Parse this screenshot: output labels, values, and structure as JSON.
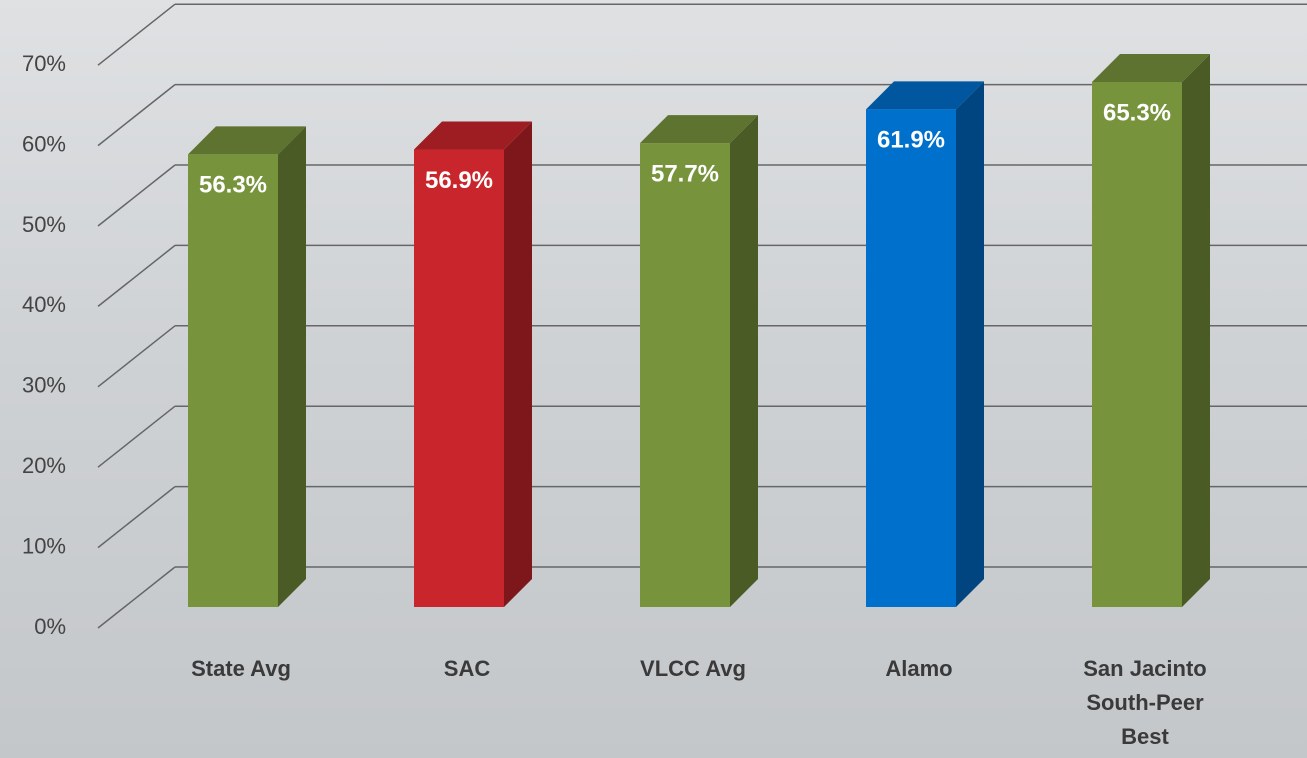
{
  "chart_data": {
    "type": "bar3d",
    "categories": [
      "State Avg",
      "SAC",
      "VLCC Avg",
      "Alamo",
      "San Jacinto South-Peer Best"
    ],
    "values": [
      56.3,
      56.9,
      57.7,
      61.9,
      65.3
    ],
    "value_labels": [
      "56.3%",
      "56.9%",
      "57.7%",
      "61.9%",
      "65.3%"
    ],
    "colors": [
      "#77933c",
      "#c9252c",
      "#77933c",
      "#0070cd",
      "#77933c"
    ],
    "ylim": [
      0,
      70
    ],
    "yticks": [
      {
        "value": 0,
        "label": "0%"
      },
      {
        "value": 10,
        "label": "10%"
      },
      {
        "value": 20,
        "label": "20%"
      },
      {
        "value": 30,
        "label": "30%"
      },
      {
        "value": 40,
        "label": "40%"
      },
      {
        "value": 50,
        "label": "50%"
      },
      {
        "value": 60,
        "label": "60%"
      },
      {
        "value": 70,
        "label": "70%"
      }
    ],
    "grid": true
  }
}
